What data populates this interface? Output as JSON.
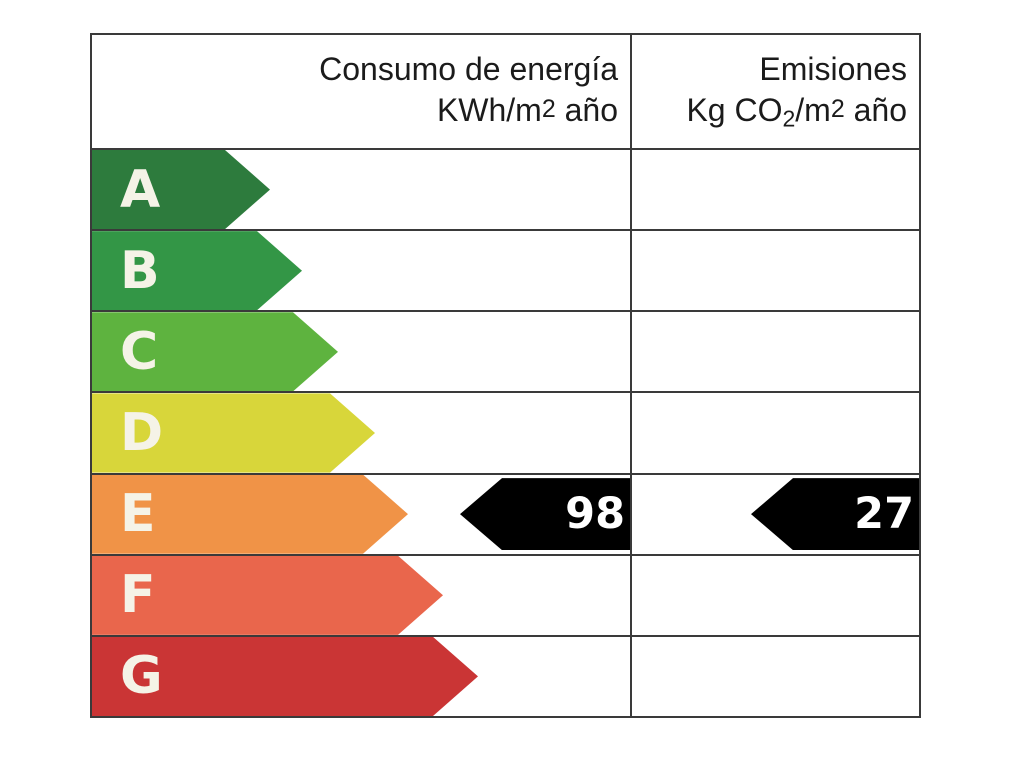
{
  "page": {
    "background": "#ffffff",
    "border_color": "#3a3a3a"
  },
  "header": {
    "consumption": {
      "line1": "Consumo de energía",
      "line2_parts": [
        {
          "t": "KWh/m",
          "style": ""
        },
        {
          "t": "2",
          "style": "sup2"
        },
        {
          "t": " año",
          "style": ""
        }
      ]
    },
    "emissions": {
      "line1": "Emisiones",
      "line2_parts": [
        {
          "t": "Kg CO",
          "style": ""
        },
        {
          "t": "2",
          "style": "sub2"
        },
        {
          "t": "/m",
          "style": ""
        },
        {
          "t": "2",
          "style": "sup2"
        },
        {
          "t": " año",
          "style": ""
        }
      ]
    }
  },
  "ratings": [
    {
      "letter": "A",
      "color": "#2d7b3d",
      "arrow_width": 178
    },
    {
      "letter": "B",
      "color": "#339646",
      "arrow_width": 210
    },
    {
      "letter": "C",
      "color": "#5eb33f",
      "arrow_width": 246
    },
    {
      "letter": "D",
      "color": "#d8d63a",
      "arrow_width": 283
    },
    {
      "letter": "E",
      "color": "#f09347",
      "arrow_width": 316
    },
    {
      "letter": "F",
      "color": "#e9664c",
      "arrow_width": 351
    },
    {
      "letter": "G",
      "color": "#ca3535",
      "arrow_width": 386
    }
  ],
  "markers": {
    "rating": "E",
    "row_index": 4,
    "color": "#000000",
    "text_color": "#ffffff",
    "consumption": {
      "value": "98",
      "width": 170
    },
    "emissions": {
      "value": "27",
      "width": 168
    }
  },
  "chart_data": {
    "type": "table",
    "title": "Energy efficiency rating label (Spain)",
    "columns": [
      "Consumo de energía KWh/m2 año",
      "Emisiones Kg CO2/m2 año"
    ],
    "rating_scale": [
      "A",
      "B",
      "C",
      "D",
      "E",
      "F",
      "G"
    ],
    "rating_colors": [
      "#2d7b3d",
      "#339646",
      "#5eb33f",
      "#d8d63a",
      "#f09347",
      "#e9664c",
      "#ca3535"
    ],
    "assigned_rating": "E",
    "consumption_kwh_m2_year": 98,
    "emissions_kg_co2_m2_year": 27
  }
}
